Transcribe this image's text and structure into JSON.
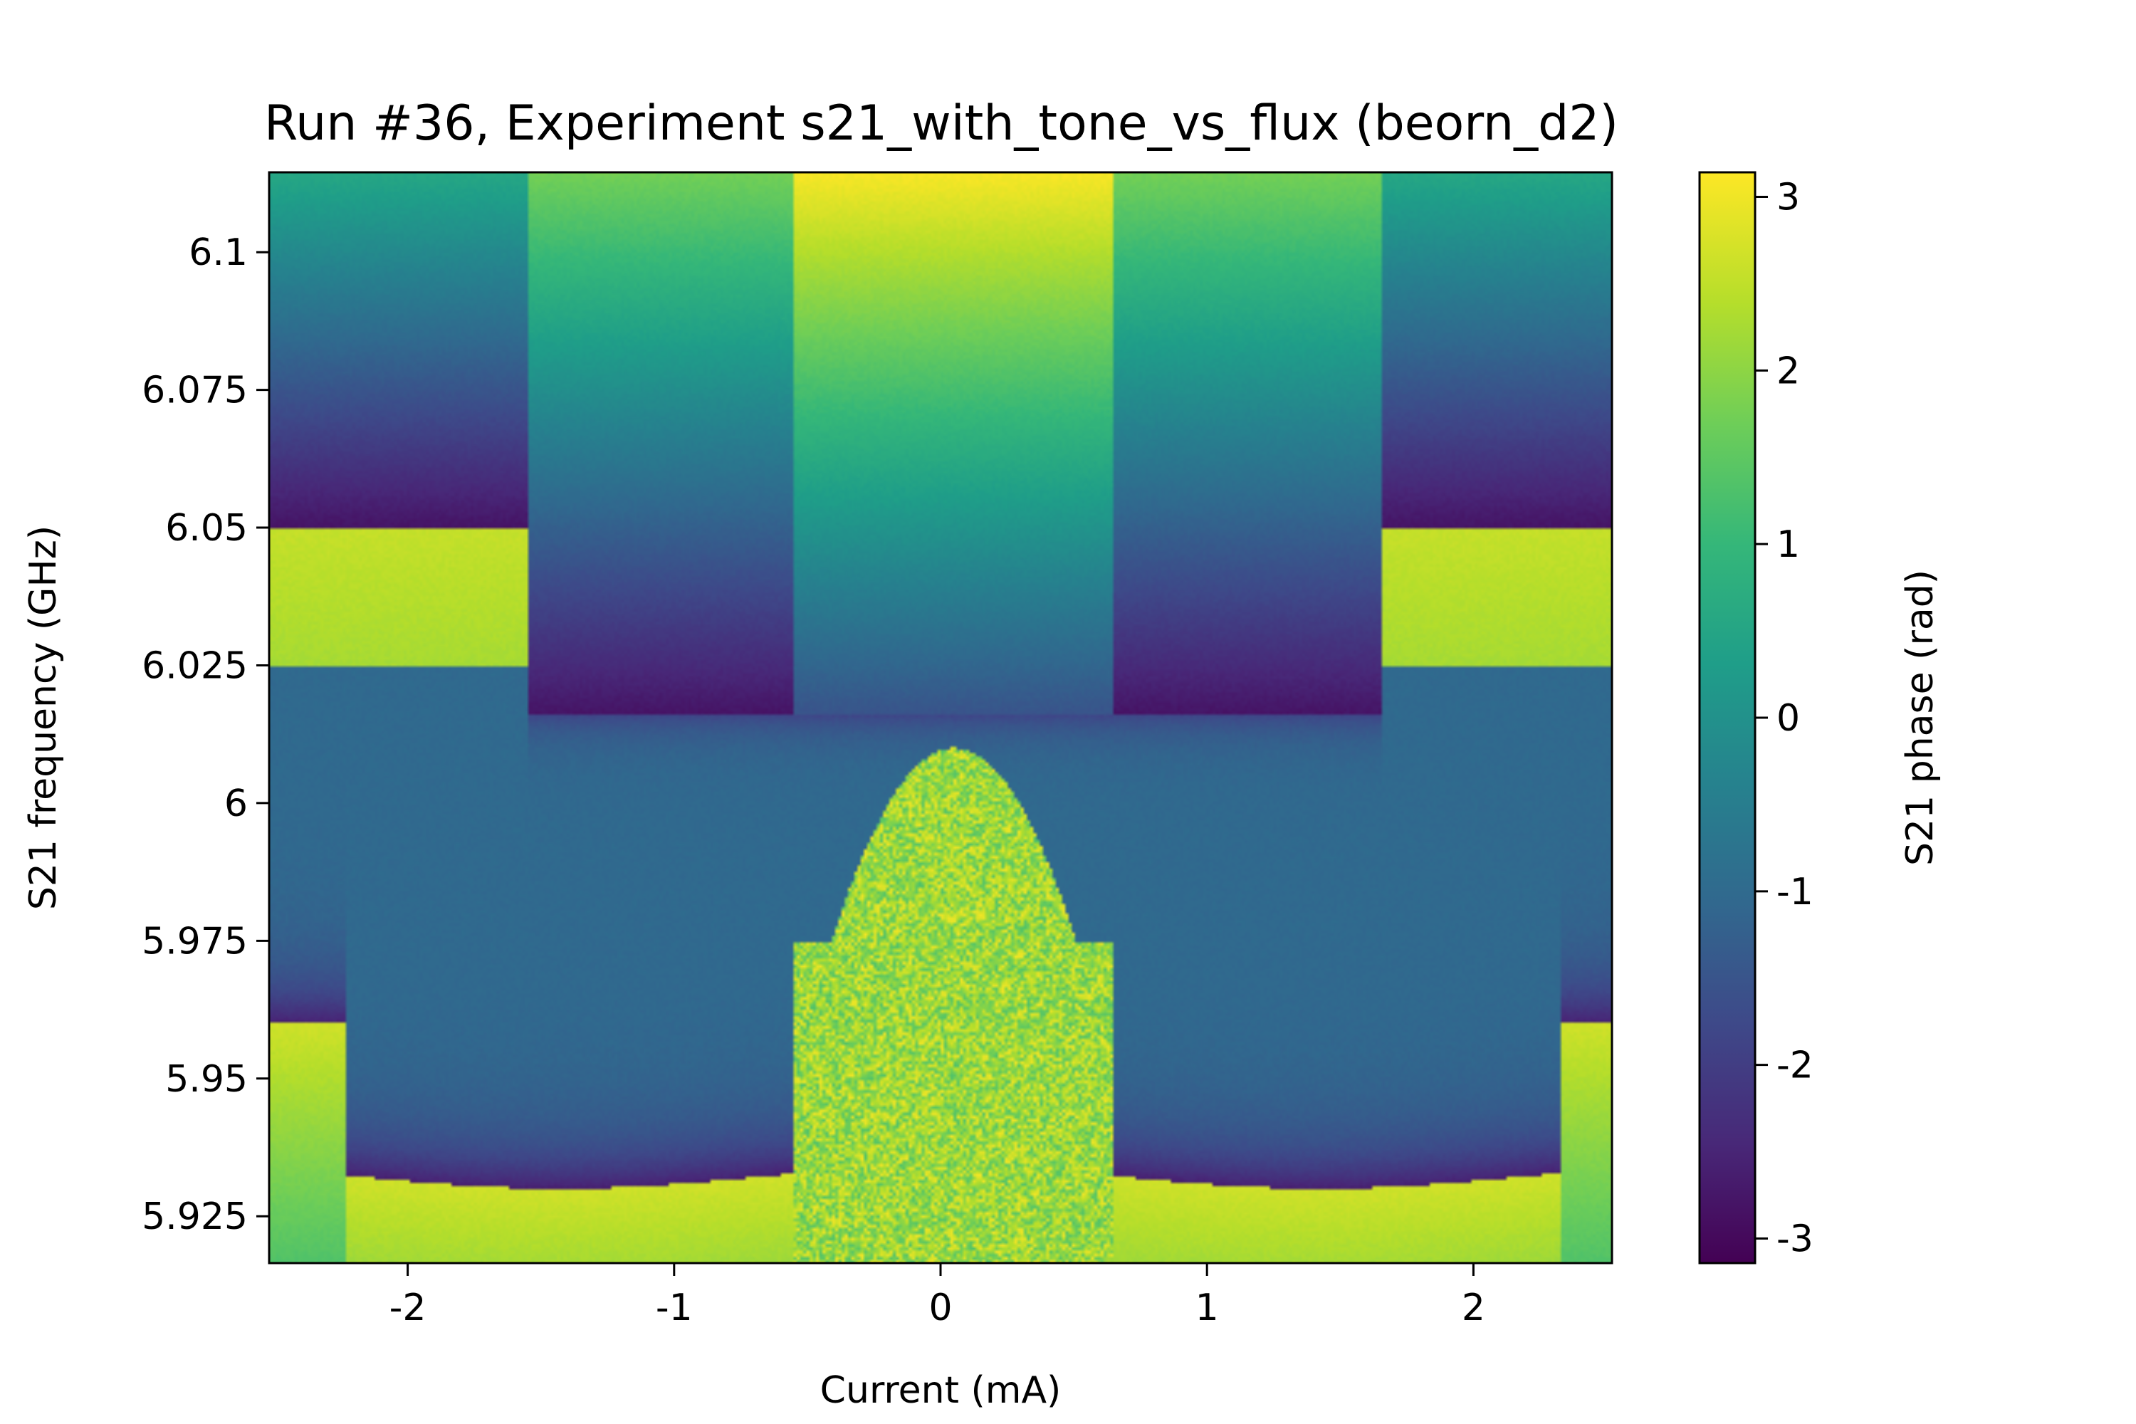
{
  "chart_data": {
    "type": "heatmap",
    "title": "Run #36, Experiment s21_with_tone_vs_flux (beorn_d2)",
    "xlabel": "Current (mA)",
    "ylabel": "S21 frequency (GHz)",
    "xlim": [
      -2.52,
      2.52
    ],
    "ylim": [
      5.9165,
      6.1145
    ],
    "x_ticks": [
      -2,
      -1,
      0,
      1,
      2
    ],
    "x_tick_labels": [
      "-2",
      "-1",
      "0",
      "1",
      "2"
    ],
    "y_ticks": [
      5.925,
      5.95,
      5.975,
      6.0,
      6.025,
      6.05,
      6.075,
      6.1
    ],
    "y_tick_labels": [
      "5.925",
      "5.95",
      "5.975",
      "6",
      "6.025",
      "6.05",
      "6.075",
      "6.1"
    ],
    "colorbar": {
      "label": "S21 phase (rad)",
      "range": [
        -3.14159,
        3.14159
      ],
      "ticks": [
        -3,
        -2,
        -1,
        0,
        1,
        2,
        3
      ],
      "tick_labels": [
        "-3",
        "-2",
        "-1",
        "0",
        "1",
        "2",
        "3"
      ],
      "colormap": "viridis"
    },
    "grid": false,
    "features": {
      "resonance_top_outer_GHz": 6.05,
      "resonance_top_inner_GHz": 6.016,
      "resonance_bottom_GHz": 5.932,
      "lower_edge_GHz": 5.96,
      "central_dome_top_GHz": 6.01,
      "central_window_mA": [
        -0.55,
        0.65
      ]
    }
  },
  "colors": {
    "viridis": [
      "#440154",
      "#482878",
      "#3e4989",
      "#31688e",
      "#26828e",
      "#1f9e89",
      "#35b779",
      "#6ece58",
      "#b5de2b",
      "#fde725"
    ]
  }
}
